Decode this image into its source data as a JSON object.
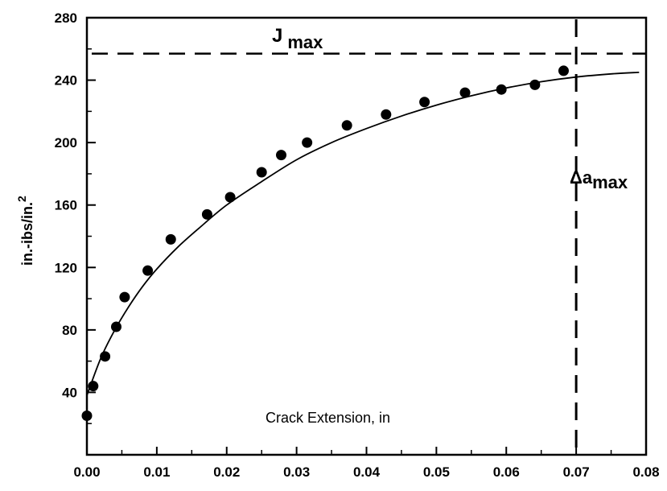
{
  "chart_data": {
    "type": "scatter",
    "title": "",
    "xlabel": "Crack Extension, in",
    "ylabel": "in.-ibs/in.",
    "ylabel_superscript": "2",
    "xlim": [
      0,
      0.08
    ],
    "ylim": [
      0,
      280
    ],
    "x_ticks": [
      0,
      0.01,
      0.02,
      0.03,
      0.04,
      0.05,
      0.06,
      0.07,
      0.08
    ],
    "x_tick_labels": [
      "0.00",
      "0.01",
      "0.02",
      "0.03",
      "0.04",
      "0.05",
      "0.06",
      "0.07",
      "0.08"
    ],
    "y_ticks": [
      40,
      80,
      120,
      160,
      200,
      240,
      280
    ],
    "y_tick_labels": [
      "40",
      "80",
      "120",
      "160",
      "200",
      "240",
      "280"
    ],
    "grid": false,
    "legend": "none",
    "series": [
      {
        "kind": "points",
        "x": [
          0.0,
          0.0009,
          0.0026,
          0.0042,
          0.0054,
          0.0087,
          0.012,
          0.0172,
          0.0205,
          0.025,
          0.0278,
          0.0315,
          0.0372,
          0.0428,
          0.0483,
          0.0541,
          0.0593,
          0.0641,
          0.0682
        ],
        "y": [
          25,
          44,
          63,
          82,
          101,
          118,
          138,
          154,
          165,
          181,
          192,
          200,
          211,
          218,
          226,
          232,
          234,
          237,
          246
        ]
      },
      {
        "kind": "fit-curve",
        "x": [
          0.0,
          0.002,
          0.004,
          0.006,
          0.008,
          0.01,
          0.013,
          0.016,
          0.02,
          0.025,
          0.03,
          0.035,
          0.04,
          0.045,
          0.05,
          0.055,
          0.06,
          0.065,
          0.07,
          0.075,
          0.079
        ],
        "y": [
          38,
          62,
          80,
          95,
          108,
          119,
          133,
          145,
          160,
          175,
          189,
          200,
          209,
          217,
          224,
          230,
          235,
          239,
          242,
          244,
          245
        ]
      }
    ],
    "reference_lines": [
      {
        "orientation": "horizontal",
        "value": 257,
        "style": "dashed",
        "label": "J",
        "label_sub": "max"
      },
      {
        "orientation": "vertical",
        "value": 0.07,
        "style": "dashed",
        "label": "Δa",
        "label_sub": "max"
      }
    ]
  }
}
